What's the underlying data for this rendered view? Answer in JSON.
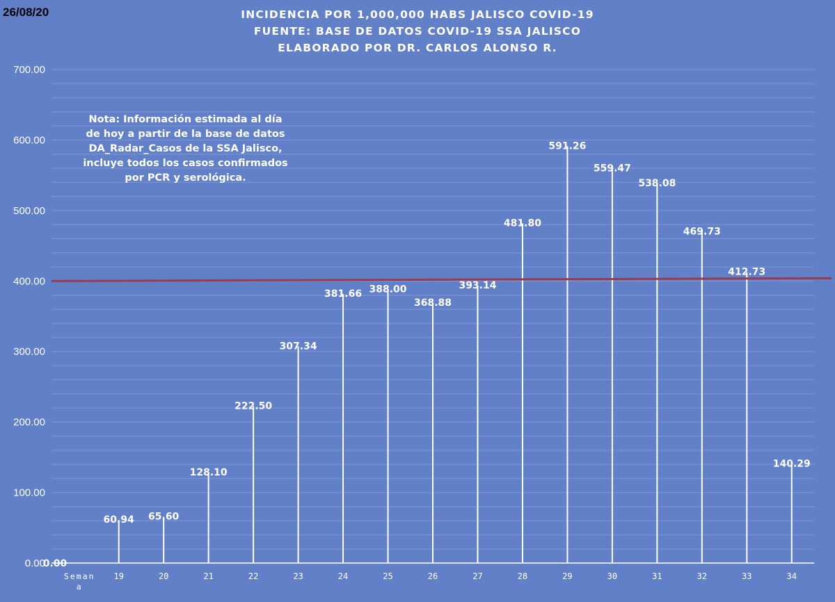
{
  "header": {
    "date": "26/08/20",
    "title_lines": [
      "INCIDENCIA POR 1,000,000 HABS JALISCO COVID-19",
      "FUENTE: BASE DE DATOS COVID-19 SSA JALISCO",
      "ELABORADO POR DR. CARLOS ALONSO R."
    ]
  },
  "note_lines": [
    "Nota: Información estimada al día",
    "de hoy a partir de la base de datos",
    "DA_Radar_Casos de la SSA Jalisco,",
    "incluye todos los casos confirmados",
    "por PCR y serológica."
  ],
  "chart_data": {
    "type": "bar",
    "categories": [
      "Semana",
      "19",
      "20",
      "21",
      "22",
      "23",
      "24",
      "25",
      "26",
      "27",
      "28",
      "29",
      "30",
      "31",
      "32",
      "33",
      "34"
    ],
    "values": [
      0.0,
      60.94,
      65.6,
      128.1,
      222.5,
      307.34,
      381.66,
      388.0,
      368.88,
      393.14,
      481.8,
      591.26,
      559.47,
      538.08,
      469.73,
      412.73,
      140.29
    ],
    "data_labels": [
      "0.00",
      "60.94",
      "65.60",
      "128.10",
      "222.50",
      "307.34",
      "381.66",
      "388.00",
      "368.88",
      "393.14",
      "481.80",
      "591.26",
      "559.47",
      "538.08",
      "469.73",
      "412.73",
      "140.29"
    ],
    "y_ticks": [
      "0.00",
      "100.00",
      "200.00",
      "300.00",
      "400.00",
      "500.00",
      "600.00",
      "700.00"
    ],
    "ylim": [
      0,
      700
    ],
    "reference_line": {
      "value_start": 400,
      "value_end": 404,
      "color": "#9b3b4e"
    },
    "grid": true,
    "colors": {
      "background": "#6280c8",
      "bars": "#ffffff",
      "gridlines": "#8097d3",
      "labels": "#ffffff",
      "axis_text": "#ffffff"
    }
  }
}
